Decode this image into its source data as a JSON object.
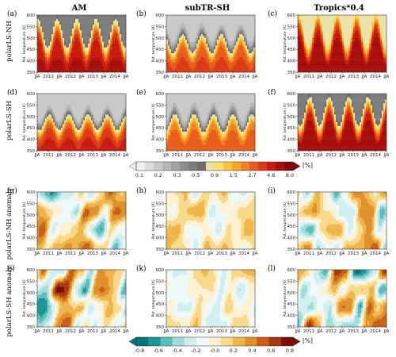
{
  "chart_data": {
    "type": "heatmap",
    "column_titles": [
      "AM",
      "subTR-SH",
      "Tropics*0.4"
    ],
    "row_titles": [
      "polarLS-NH",
      "polarLS-SH",
      "polarLS-NH anomaly",
      "polarLS-SH anomaly"
    ],
    "panel_tags": [
      [
        "(a)",
        "(b)",
        "(c)"
      ],
      [
        "(d)",
        "(e)",
        "(f)"
      ],
      [
        "(g)",
        "(h)",
        "(i)"
      ],
      [
        "(j)",
        "(k)",
        "(l)"
      ]
    ],
    "ylabel": "Pot. temperature [K]",
    "yticks": [
      "350",
      "400",
      "450",
      "500",
      "550",
      "600"
    ],
    "ylim": [
      350,
      600
    ],
    "xticks": [
      "JJA",
      "2011",
      "JJA",
      "2012",
      "JJA",
      "2013",
      "JJA",
      "2014",
      "JJA"
    ],
    "colorbar_mean": {
      "ticks": [
        "0.1",
        "0.2",
        "0.3",
        "0.5",
        "0.9",
        "1.5",
        "2.7",
        "4.6",
        "8.0"
      ],
      "unit": "[%]",
      "colors": [
        "#f0f0f0",
        "#dddddd",
        "#c9c9c9",
        "#b5b5b5",
        "#a2a2a2",
        "#8e8e8e",
        "#7d7d7d",
        "#6e6e6e",
        "#e9e3a9",
        "#f6e070",
        "#f7c43b",
        "#f5a623",
        "#f08222",
        "#e85d1a",
        "#dc3a14",
        "#c81a0f",
        "#a50e0b",
        "#820608"
      ]
    },
    "colorbar_anomaly": {
      "ticks": [
        "-0.8",
        "-0.6",
        "-0.4",
        "-0.2",
        "-0.0",
        "0.2",
        "0.4",
        "0.6",
        "0.8"
      ],
      "unit": "[%]",
      "colors": [
        "#00767a",
        "#1a9696",
        "#5bbdbd",
        "#a1dbdb",
        "#d2efef",
        "#eef9f9",
        "#fdf1d2",
        "#f8d98a",
        "#efb54b",
        "#e0902a",
        "#c85f14",
        "#a8380c",
        "#7a0e05"
      ]
    },
    "panels": [
      {
        "col": "AM",
        "row": "polarLS-NH",
        "kind": "mean",
        "peak_level": 5.0,
        "floor_level": 0.3,
        "summer_depth": 0.55
      },
      {
        "col": "subTR-SH",
        "row": "polarLS-NH",
        "kind": "mean",
        "peak_level": 3.0,
        "floor_level": 0.12,
        "summer_depth": 0.35
      },
      {
        "col": "Tropics*0.4",
        "row": "polarLS-NH",
        "kind": "mean",
        "peak_level": 6.0,
        "floor_level": 0.5,
        "summer_depth": 0.65
      },
      {
        "col": "AM",
        "row": "polarLS-SH",
        "kind": "mean",
        "peak_level": 4.0,
        "floor_level": 0.1,
        "summer_depth": 0.3
      },
      {
        "col": "subTR-SH",
        "row": "polarLS-SH",
        "kind": "mean",
        "peak_level": 2.5,
        "floor_level": 0.12,
        "summer_depth": 0.35
      },
      {
        "col": "Tropics*0.4",
        "row": "polarLS-SH",
        "kind": "mean",
        "peak_level": 6.0,
        "floor_level": 0.3,
        "summer_depth": 0.55
      },
      {
        "col": "AM",
        "row": "polarLS-NH anomaly",
        "kind": "anomaly",
        "amplitude": 0.55
      },
      {
        "col": "subTR-SH",
        "row": "polarLS-NH anomaly",
        "kind": "anomaly",
        "amplitude": 0.35
      },
      {
        "col": "Tropics*0.4",
        "row": "polarLS-NH anomaly",
        "kind": "anomaly",
        "amplitude": 0.5
      },
      {
        "col": "AM",
        "row": "polarLS-SH anomaly",
        "kind": "anomaly",
        "amplitude": 0.7
      },
      {
        "col": "subTR-SH",
        "row": "polarLS-SH anomaly",
        "kind": "anomaly",
        "amplitude": 0.3
      },
      {
        "col": "Tropics*0.4",
        "row": "polarLS-SH anomaly",
        "kind": "anomaly",
        "amplitude": 0.75
      }
    ]
  }
}
